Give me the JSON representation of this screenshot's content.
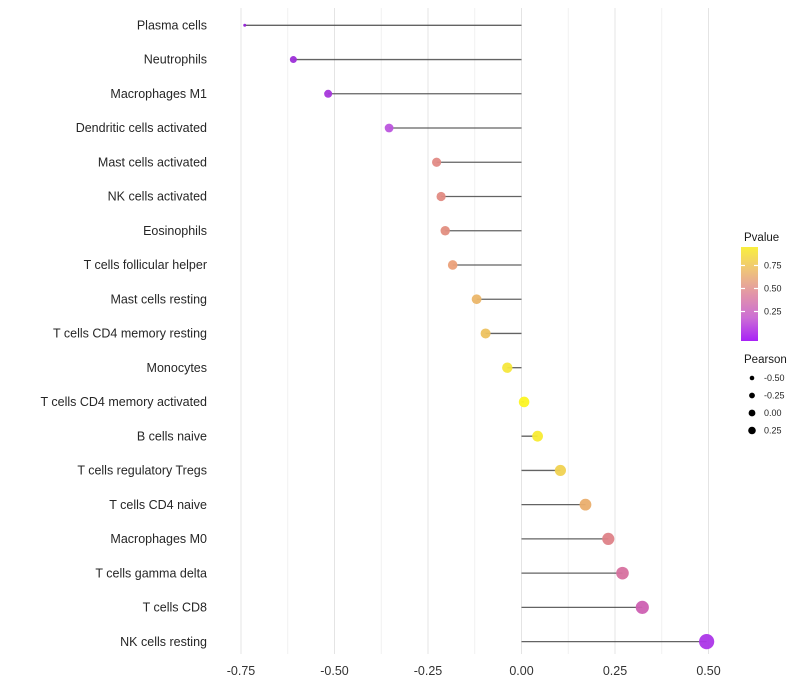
{
  "chart_data": {
    "type": "scatter",
    "variant": "lollipop",
    "title": "",
    "xlabel": "",
    "ylabel": "",
    "xlim": [
      -0.82,
      0.56
    ],
    "x_ticks": [
      -0.75,
      -0.5,
      -0.25,
      0.0,
      0.25,
      0.5
    ],
    "x_tick_labels": [
      "-0.75",
      "-0.50",
      "-0.25",
      "0.00",
      "0.25",
      "0.50"
    ],
    "x_minor_ticks": [
      -0.625,
      -0.375,
      -0.125,
      0.125,
      0.375
    ],
    "grid": true,
    "points": [
      {
        "label": "Plasma cells",
        "pearson": -0.74,
        "pvalue": 0.001,
        "color": "#9321d6",
        "radius": 1.5
      },
      {
        "label": "Neutrophils",
        "pearson": -0.61,
        "pvalue": 0.01,
        "color": "#9d2fd8",
        "radius": 3.5
      },
      {
        "label": "Macrophages M1",
        "pearson": -0.517,
        "pvalue": 0.03,
        "color": "#a637db",
        "radius": 4.0
      },
      {
        "label": "Dendritic cells activated",
        "pearson": -0.354,
        "pvalue": 0.13,
        "color": "#bc55de",
        "radius": 4.4
      },
      {
        "label": "Mast cells activated",
        "pearson": -0.227,
        "pvalue": 0.52,
        "color": "#e18a85",
        "radius": 4.6
      },
      {
        "label": "NK cells activated",
        "pearson": -0.215,
        "pvalue": 0.54,
        "color": "#e18b83",
        "radius": 4.6
      },
      {
        "label": "Eosinophils",
        "pearson": -0.204,
        "pvalue": 0.56,
        "color": "#e28e7f",
        "radius": 4.7
      },
      {
        "label": "T cells follicular helper",
        "pearson": -0.184,
        "pvalue": 0.62,
        "color": "#eba079",
        "radius": 4.8
      },
      {
        "label": "Mast cells resting",
        "pearson": -0.12,
        "pvalue": 0.72,
        "color": "#ebb669",
        "radius": 4.9
      },
      {
        "label": "T cells CD4 memory resting",
        "pearson": -0.096,
        "pvalue": 0.76,
        "color": "#edc25f",
        "radius": 5.0
      },
      {
        "label": "Monocytes",
        "pearson": -0.038,
        "pvalue": 0.9,
        "color": "#f5e73c",
        "radius": 5.2
      },
      {
        "label": "T cells CD4 memory activated",
        "pearson": 0.007,
        "pvalue": 0.95,
        "color": "#fcf523",
        "radius": 5.3
      },
      {
        "label": "B cells naive",
        "pearson": 0.043,
        "pvalue": 0.92,
        "color": "#f8eb33",
        "radius": 5.4
      },
      {
        "label": "T cells regulatory  Tregs",
        "pearson": 0.104,
        "pvalue": 0.8,
        "color": "#f0d251",
        "radius": 5.6
      },
      {
        "label": "T cells CD4 naive",
        "pearson": 0.171,
        "pvalue": 0.66,
        "color": "#eaae6d",
        "radius": 5.9
      },
      {
        "label": "Macrophages M0",
        "pearson": 0.232,
        "pvalue": 0.49,
        "color": "#de8288",
        "radius": 6.1
      },
      {
        "label": "T cells gamma delta",
        "pearson": 0.27,
        "pvalue": 0.35,
        "color": "#d7719f",
        "radius": 6.3
      },
      {
        "label": "T cells CD8",
        "pearson": 0.323,
        "pvalue": 0.25,
        "color": "#cd60b2",
        "radius": 6.6
      },
      {
        "label": "NK cells resting",
        "pearson": 0.495,
        "pvalue": 0.02,
        "color": "#ac36e8",
        "radius": 7.6
      }
    ],
    "legend_color": {
      "title": "Pvalue",
      "tick_labels": [
        "0.75",
        "0.50",
        "0.25"
      ],
      "tick_values": [
        0.75,
        0.5,
        0.25
      ],
      "range": [
        0.0,
        0.95
      ],
      "gradient_top_to_bottom": [
        "#f9ef3e",
        "#efc37a",
        "#e295a8",
        "#cc6fd4",
        "#a821f7"
      ],
      "position": "right"
    },
    "legend_size": {
      "title": "Pearson",
      "entries": [
        {
          "label": "-0.50",
          "value": -0.5,
          "radius": 2.3
        },
        {
          "label": "-0.25",
          "value": -0.25,
          "radius": 2.9
        },
        {
          "label": "0.00",
          "value": 0.0,
          "radius": 3.4
        },
        {
          "label": "0.25",
          "value": 0.25,
          "radius": 3.8
        }
      ],
      "dot_color": "#000000",
      "position": "right"
    },
    "style": {
      "background": "#ffffff",
      "grid_major_color": "#e4e4e4",
      "grid_minor_color": "#f1f1f1",
      "stem_color": "#484848",
      "axis_text_color": "#333333",
      "category_text_color": "#262626",
      "legend_title_color": "#1a1a1a",
      "legend_text_color": "#262626"
    }
  }
}
